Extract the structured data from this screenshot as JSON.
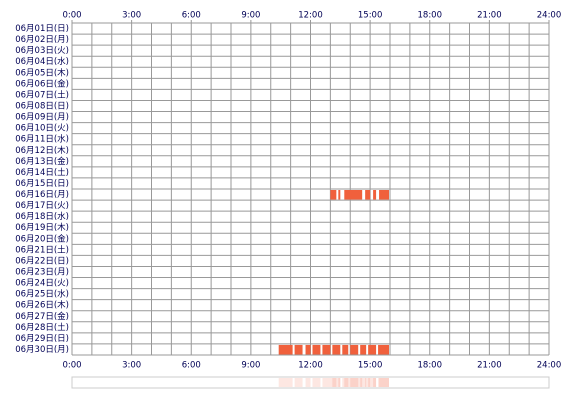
{
  "chart_data": {
    "type": "timeline",
    "categories": [
      "06月01日(日)",
      "06月02日(月)",
      "06月03日(火)",
      "06月04日(水)",
      "06月05日(木)",
      "06月06日(金)",
      "06月07日(土)",
      "06月08日(日)",
      "06月09日(月)",
      "06月10日(火)",
      "06月11日(水)",
      "06月12日(木)",
      "06月13日(金)",
      "06月14日(土)",
      "06月15日(日)",
      "06月16日(月)",
      "06月17日(火)",
      "06月18日(水)",
      "06月19日(木)",
      "06月20日(金)",
      "06月21日(土)",
      "06月22日(日)",
      "06月23日(月)",
      "06月24日(火)",
      "06月25日(水)",
      "06月26日(木)",
      "06月27日(金)",
      "06月28日(土)",
      "06月29日(日)",
      "06月30日(月)"
    ],
    "values": [
      [],
      [],
      [],
      [],
      [],
      [],
      [],
      [],
      [],
      [],
      [],
      [],
      [],
      [],
      [],
      [
        [
          13.0,
          13.3
        ],
        [
          13.4,
          13.5
        ],
        [
          13.7,
          14.6
        ],
        [
          14.75,
          15.0
        ],
        [
          15.15,
          15.3
        ],
        [
          15.45,
          15.95
        ]
      ],
      [],
      [],
      [],
      [],
      [],
      [],
      [],
      [],
      [],
      [],
      [],
      [],
      [],
      [
        [
          10.4,
          11.1
        ],
        [
          11.2,
          11.6
        ],
        [
          11.75,
          12.0
        ],
        [
          12.1,
          12.5
        ],
        [
          12.6,
          13.0
        ],
        [
          13.1,
          13.5
        ],
        [
          13.6,
          13.9
        ],
        [
          14.0,
          14.4
        ],
        [
          14.5,
          14.8
        ],
        [
          14.9,
          15.3
        ],
        [
          15.4,
          15.95
        ]
      ]
    ],
    "color": "#f0603c",
    "xlim": [
      0,
      24
    ],
    "xticks": [
      {
        "value": 0,
        "label": "0:00"
      },
      {
        "value": 3,
        "label": "3:00"
      },
      {
        "value": 6,
        "label": "6:00"
      },
      {
        "value": 9,
        "label": "9:00"
      },
      {
        "value": 12,
        "label": "12:00"
      },
      {
        "value": 15,
        "label": "15:00"
      },
      {
        "value": 18,
        "label": "18:00"
      },
      {
        "value": 21,
        "label": "21:00"
      },
      {
        "value": 24,
        "label": "24:00"
      }
    ],
    "grid": true
  }
}
